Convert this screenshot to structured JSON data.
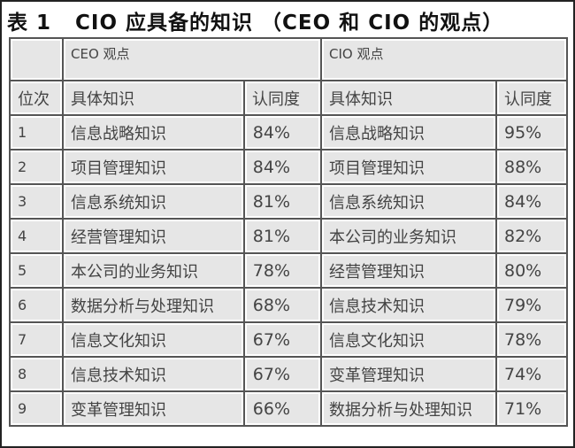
{
  "title": "表 1   CIO 应具备的知识 （CEO 和 CIO 的观点）",
  "groups": {
    "ceo": "CEO 观点",
    "cio": "CIO 观点"
  },
  "headers": {
    "rank": "位次",
    "knowledge": "具体知识",
    "approval": "认同度"
  },
  "rows": [
    {
      "rank": "1",
      "ceo_k": "信息战略知识",
      "ceo_p": "84%",
      "cio_k": "信息战略知识",
      "cio_p": "95%"
    },
    {
      "rank": "2",
      "ceo_k": "项目管理知识",
      "ceo_p": "84%",
      "cio_k": "项目管理知识",
      "cio_p": "88%"
    },
    {
      "rank": "3",
      "ceo_k": "信息系统知识",
      "ceo_p": "81%",
      "cio_k": "信息系统知识",
      "cio_p": "84%"
    },
    {
      "rank": "4",
      "ceo_k": "经营管理知识",
      "ceo_p": "81%",
      "cio_k": "本公司的业务知识",
      "cio_p": "82%"
    },
    {
      "rank": "5",
      "ceo_k": "本公司的业务知识",
      "ceo_p": "78%",
      "cio_k": "经营管理知识",
      "cio_p": "80%"
    },
    {
      "rank": "6",
      "ceo_k": "数据分析与处理知识",
      "ceo_p": "68%",
      "cio_k": "信息技术知识",
      "cio_p": "79%"
    },
    {
      "rank": "7",
      "ceo_k": "信息文化知识",
      "ceo_p": "67%",
      "cio_k": "信息文化知识",
      "cio_p": "78%"
    },
    {
      "rank": "8",
      "ceo_k": "信息技术知识",
      "ceo_p": "67%",
      "cio_k": "变革管理知识",
      "cio_p": "74%"
    },
    {
      "rank": "9",
      "ceo_k": "变革管理知识",
      "ceo_p": "66%",
      "cio_k": "数据分析与处理知识",
      "cio_p": "71%"
    }
  ]
}
